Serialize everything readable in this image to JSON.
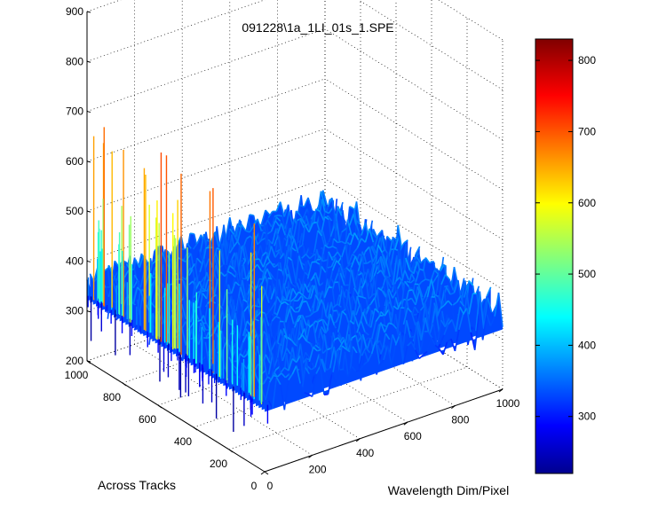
{
  "chart_data": {
    "type": "surface",
    "title": "091228\\1a_1LI_01s_1.SPE",
    "xlabel": "Wavelength Dim/Pixel",
    "ylabel": "Across Tracks",
    "zlabel": "",
    "xlim": [
      0,
      1000
    ],
    "ylim": [
      0,
      1000
    ],
    "zlim": [
      200,
      900
    ],
    "xticks": [
      "0",
      "200",
      "400",
      "600",
      "800",
      "1000"
    ],
    "yticks": [
      "0",
      "200",
      "400",
      "600",
      "800",
      "1000"
    ],
    "zticks": [
      "200",
      "300",
      "400",
      "500",
      "600",
      "700",
      "800",
      "900"
    ],
    "colorbar": {
      "colormap": "jet",
      "range": [
        220,
        830
      ],
      "ticks": [
        "300",
        "400",
        "500",
        "600",
        "700",
        "800"
      ]
    },
    "baseline_level": 350,
    "noise_range": [
      310,
      400
    ],
    "edge_spikes": {
      "x_region": [
        0,
        20
      ],
      "range": [
        230,
        710
      ],
      "description": "strong spikes along low-wavelength edge across all tracks"
    },
    "grid": true
  }
}
